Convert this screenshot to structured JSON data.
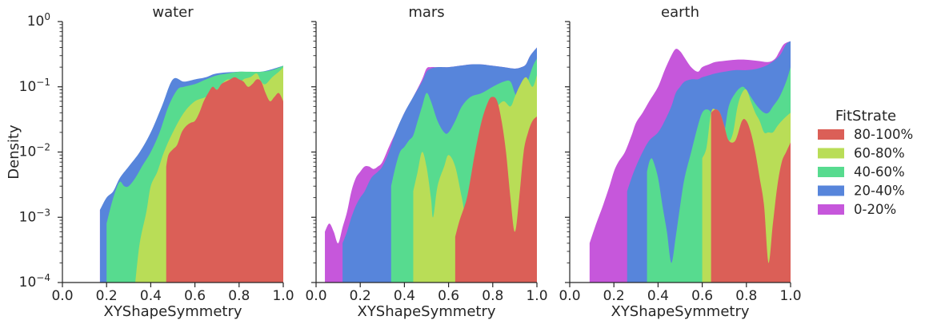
{
  "chart_data": {
    "type": "area",
    "stacked": true,
    "y_scale": "log",
    "ylim": [
      0.0001,
      1
    ],
    "xlim": [
      0.0,
      1.0
    ],
    "ylabel": "Density",
    "xlabel": "XYShapeSymmetry",
    "x_ticks": [
      "0.0",
      "0.2",
      "0.4",
      "0.6",
      "0.8",
      "1.0"
    ],
    "y_ticks": [
      {
        "base": "10",
        "exp": "0"
      },
      {
        "base": "10",
        "exp": "−1"
      },
      {
        "base": "10",
        "exp": "−2"
      },
      {
        "base": "10",
        "exp": "−3"
      },
      {
        "base": "10",
        "exp": "−4"
      }
    ],
    "legend": {
      "title": "FitStrate",
      "placement": "right",
      "entries": [
        {
          "label": "80-100%",
          "color": "#db5f57"
        },
        {
          "label": "60-80%",
          "color": "#b9dd57"
        },
        {
          "label": "40-60%",
          "color": "#57db8f"
        },
        {
          "label": "20-40%",
          "color": "#5785db"
        },
        {
          "label": "0-20%",
          "color": "#c657db"
        }
      ]
    },
    "panels": [
      {
        "title": "water",
        "series": [
          {
            "name": "80-100%",
            "x": [
              0.47,
              0.48,
              0.5,
              0.52,
              0.54,
              0.56,
              0.58,
              0.6,
              0.62,
              0.64,
              0.66,
              0.68,
              0.7,
              0.72,
              0.74,
              0.76,
              0.78,
              0.8,
              0.82,
              0.84,
              0.86,
              0.88,
              0.9,
              0.92,
              0.94,
              0.96,
              0.98,
              1.0
            ],
            "y": [
              0.006,
              0.009,
              0.011,
              0.013,
              0.02,
              0.025,
              0.028,
              0.03,
              0.04,
              0.06,
              0.08,
              0.1,
              0.09,
              0.11,
              0.12,
              0.13,
              0.14,
              0.13,
              0.12,
              0.1,
              0.11,
              0.13,
              0.12,
              0.08,
              0.06,
              0.07,
              0.08,
              0.06
            ]
          },
          {
            "name": "60-80%",
            "x": [
              0.33,
              0.35,
              0.38,
              0.4,
              0.43,
              0.46,
              0.5,
              0.55,
              0.6,
              0.65,
              0.7,
              0.72,
              0.75,
              0.78,
              0.8,
              0.82,
              0.85,
              0.88,
              0.9,
              0.92,
              0.95,
              0.98,
              1.0
            ],
            "y": [
              0.0001,
              0.0004,
              0.0012,
              0.003,
              0.005,
              0.01,
              0.02,
              0.04,
              0.06,
              0.07,
              0.09,
              0.11,
              0.13,
              0.12,
              0.11,
              0.13,
              0.14,
              0.16,
              0.12,
              0.11,
              0.14,
              0.17,
              0.2
            ]
          },
          {
            "name": "40-60%",
            "x": [
              0.2,
              0.22,
              0.24,
              0.26,
              0.28,
              0.3,
              0.33,
              0.36,
              0.4,
              0.44,
              0.48,
              0.52,
              0.55,
              0.6,
              0.65,
              0.7,
              0.75,
              0.8,
              0.85,
              0.9,
              0.95,
              1.0
            ],
            "y": [
              0.0008,
              0.0015,
              0.0025,
              0.0035,
              0.003,
              0.003,
              0.004,
              0.006,
              0.01,
              0.02,
              0.05,
              0.09,
              0.1,
              0.11,
              0.13,
              0.15,
              0.16,
              0.17,
              0.17,
              0.17,
              0.18,
              0.21
            ]
          },
          {
            "name": "20-40%",
            "x": [
              0.17,
              0.2,
              0.23,
              0.26,
              0.3,
              0.35,
              0.4,
              0.45,
              0.5,
              0.55,
              0.6,
              0.65,
              0.7,
              0.8,
              0.9,
              1.0
            ],
            "y": [
              0.0013,
              0.002,
              0.0025,
              0.004,
              0.006,
              0.01,
              0.02,
              0.05,
              0.13,
              0.12,
              0.13,
              0.14,
              0.16,
              0.17,
              0.17,
              0.21
            ]
          },
          {
            "name": "0-20%",
            "x": [
              0.17,
              1.0
            ],
            "y": [
              0.0013,
              0.21
            ]
          }
        ]
      },
      {
        "title": "mars",
        "series": [
          {
            "name": "80-100%",
            "x": [
              0.63,
              0.65,
              0.68,
              0.7,
              0.72,
              0.75,
              0.78,
              0.8,
              0.82,
              0.84,
              0.86,
              0.88,
              0.9,
              0.92,
              0.94,
              0.96,
              0.98,
              1.0
            ],
            "y": [
              0.0005,
              0.0009,
              0.0018,
              0.004,
              0.01,
              0.03,
              0.06,
              0.07,
              0.06,
              0.03,
              0.01,
              0.002,
              0.0006,
              0.002,
              0.01,
              0.02,
              0.03,
              0.035
            ]
          },
          {
            "name": "60-80%",
            "x": [
              0.44,
              0.46,
              0.48,
              0.5,
              0.52,
              0.53,
              0.55,
              0.58,
              0.6,
              0.63,
              0.66,
              0.68,
              0.7,
              0.72,
              0.75,
              0.78,
              0.8,
              0.82,
              0.85,
              0.88,
              0.9,
              0.92,
              0.95,
              0.98,
              1.0
            ],
            "y": [
              0.0025,
              0.005,
              0.01,
              0.006,
              0.002,
              0.001,
              0.003,
              0.006,
              0.009,
              0.006,
              0.002,
              0.001,
              0.003,
              0.01,
              0.02,
              0.03,
              0.04,
              0.05,
              0.06,
              0.05,
              0.07,
              0.1,
              0.14,
              0.1,
              0.15
            ]
          },
          {
            "name": "40-60%",
            "x": [
              0.34,
              0.36,
              0.38,
              0.4,
              0.42,
              0.44,
              0.46,
              0.48,
              0.5,
              0.52,
              0.55,
              0.58,
              0.6,
              0.63,
              0.66,
              0.7,
              0.75,
              0.8,
              0.85,
              0.88,
              0.9,
              0.92,
              0.95,
              0.98,
              1.0
            ],
            "y": [
              0.003,
              0.006,
              0.01,
              0.012,
              0.015,
              0.018,
              0.03,
              0.05,
              0.08,
              0.06,
              0.03,
              0.02,
              0.02,
              0.03,
              0.05,
              0.07,
              0.08,
              0.1,
              0.12,
              0.12,
              0.08,
              0.06,
              0.1,
              0.2,
              0.27
            ]
          },
          {
            "name": "20-40%",
            "x": [
              0.12,
              0.14,
              0.16,
              0.18,
              0.2,
              0.22,
              0.25,
              0.28,
              0.3,
              0.33,
              0.36,
              0.4,
              0.44,
              0.48,
              0.5,
              0.52,
              0.55,
              0.6,
              0.65,
              0.7,
              0.75,
              0.8,
              0.85,
              0.9,
              0.93,
              0.95,
              0.97,
              1.0
            ],
            "y": [
              0.0004,
              0.0006,
              0.001,
              0.0015,
              0.002,
              0.0025,
              0.004,
              0.005,
              0.006,
              0.01,
              0.02,
              0.04,
              0.07,
              0.12,
              0.17,
              0.19,
              0.2,
              0.2,
              0.21,
              0.22,
              0.22,
              0.21,
              0.2,
              0.19,
              0.2,
              0.22,
              0.3,
              0.4
            ]
          },
          {
            "name": "0-20%",
            "x": [
              0.04,
              0.06,
              0.08,
              0.1,
              0.12,
              0.14,
              0.16,
              0.18,
              0.2,
              0.22,
              0.24,
              0.26,
              0.28,
              0.3,
              0.33,
              0.36,
              0.4,
              0.44,
              0.48,
              0.5,
              0.52,
              0.55,
              0.6,
              0.65,
              0.7,
              0.75,
              0.8,
              0.85,
              0.9,
              0.93,
              0.95,
              0.97,
              1.0
            ],
            "y": [
              0.0006,
              0.0008,
              0.0006,
              0.0004,
              0.0007,
              0.0012,
              0.0025,
              0.004,
              0.005,
              0.006,
              0.006,
              0.0055,
              0.006,
              0.007,
              0.012,
              0.02,
              0.04,
              0.07,
              0.13,
              0.19,
              0.2,
              0.2,
              0.2,
              0.21,
              0.22,
              0.22,
              0.21,
              0.2,
              0.19,
              0.2,
              0.22,
              0.3,
              0.4
            ]
          }
        ]
      },
      {
        "title": "earth",
        "series": [
          {
            "name": "80-100%",
            "x": [
              0.64,
              0.66,
              0.68,
              0.7,
              0.72,
              0.75,
              0.78,
              0.8,
              0.82,
              0.84,
              0.86,
              0.88,
              0.9,
              0.92,
              0.94,
              0.96,
              0.98,
              1.0
            ],
            "y": [
              0.04,
              0.045,
              0.04,
              0.025,
              0.015,
              0.015,
              0.03,
              0.03,
              0.02,
              0.01,
              0.004,
              0.0015,
              0.0002,
              0.0008,
              0.003,
              0.007,
              0.01,
              0.014
            ]
          },
          {
            "name": "60-80%",
            "x": [
              0.6,
              0.62,
              0.64,
              0.66,
              0.68,
              0.7,
              0.72,
              0.74,
              0.76,
              0.78,
              0.8,
              0.82,
              0.84,
              0.86,
              0.88,
              0.9,
              0.92,
              0.94,
              0.96,
              0.98,
              1.0
            ],
            "y": [
              0.008,
              0.012,
              0.04,
              0.045,
              0.04,
              0.025,
              0.015,
              0.02,
              0.05,
              0.08,
              0.09,
              0.06,
              0.04,
              0.03,
              0.02,
              0.02,
              0.02,
              0.025,
              0.03,
              0.035,
              0.04
            ]
          },
          {
            "name": "40-60%",
            "x": [
              0.35,
              0.36,
              0.37,
              0.38,
              0.4,
              0.42,
              0.44,
              0.46,
              0.48,
              0.5,
              0.52,
              0.55,
              0.58,
              0.6,
              0.62,
              0.64,
              0.66,
              0.68,
              0.7,
              0.72,
              0.75,
              0.78,
              0.8,
              0.82,
              0.85,
              0.88,
              0.9,
              0.92,
              0.95,
              0.98,
              1.0
            ],
            "y": [
              0.005,
              0.007,
              0.008,
              0.007,
              0.004,
              0.0015,
              0.0006,
              0.0002,
              0.0005,
              0.0015,
              0.004,
              0.01,
              0.025,
              0.04,
              0.045,
              0.04,
              0.025,
              0.015,
              0.02,
              0.05,
              0.08,
              0.1,
              0.09,
              0.07,
              0.05,
              0.04,
              0.04,
              0.05,
              0.07,
              0.12,
              0.2
            ]
          },
          {
            "name": "20-40%",
            "x": [
              0.26,
              0.28,
              0.3,
              0.33,
              0.36,
              0.4,
              0.43,
              0.46,
              0.48,
              0.5,
              0.52,
              0.55,
              0.58,
              0.6,
              0.63,
              0.66,
              0.7,
              0.75,
              0.8,
              0.85,
              0.9,
              0.95,
              0.98,
              1.0
            ],
            "y": [
              0.0025,
              0.004,
              0.006,
              0.01,
              0.015,
              0.02,
              0.03,
              0.05,
              0.08,
              0.1,
              0.12,
              0.13,
              0.13,
              0.14,
              0.15,
              0.16,
              0.17,
              0.18,
              0.18,
              0.19,
              0.22,
              0.3,
              0.45,
              0.5
            ]
          },
          {
            "name": "0-20%",
            "x": [
              0.09,
              0.12,
              0.15,
              0.18,
              0.2,
              0.22,
              0.25,
              0.28,
              0.3,
              0.33,
              0.36,
              0.4,
              0.43,
              0.46,
              0.48,
              0.5,
              0.52,
              0.55,
              0.58,
              0.6,
              0.63,
              0.66,
              0.7,
              0.75,
              0.8,
              0.85,
              0.9,
              0.93,
              0.95,
              0.97,
              1.0
            ],
            "y": [
              0.0004,
              0.0008,
              0.0015,
              0.003,
              0.005,
              0.007,
              0.01,
              0.018,
              0.028,
              0.04,
              0.06,
              0.1,
              0.18,
              0.3,
              0.38,
              0.35,
              0.28,
              0.2,
              0.17,
              0.2,
              0.22,
              0.24,
              0.25,
              0.26,
              0.26,
              0.25,
              0.24,
              0.27,
              0.35,
              0.45,
              0.5
            ]
          }
        ]
      }
    ]
  }
}
